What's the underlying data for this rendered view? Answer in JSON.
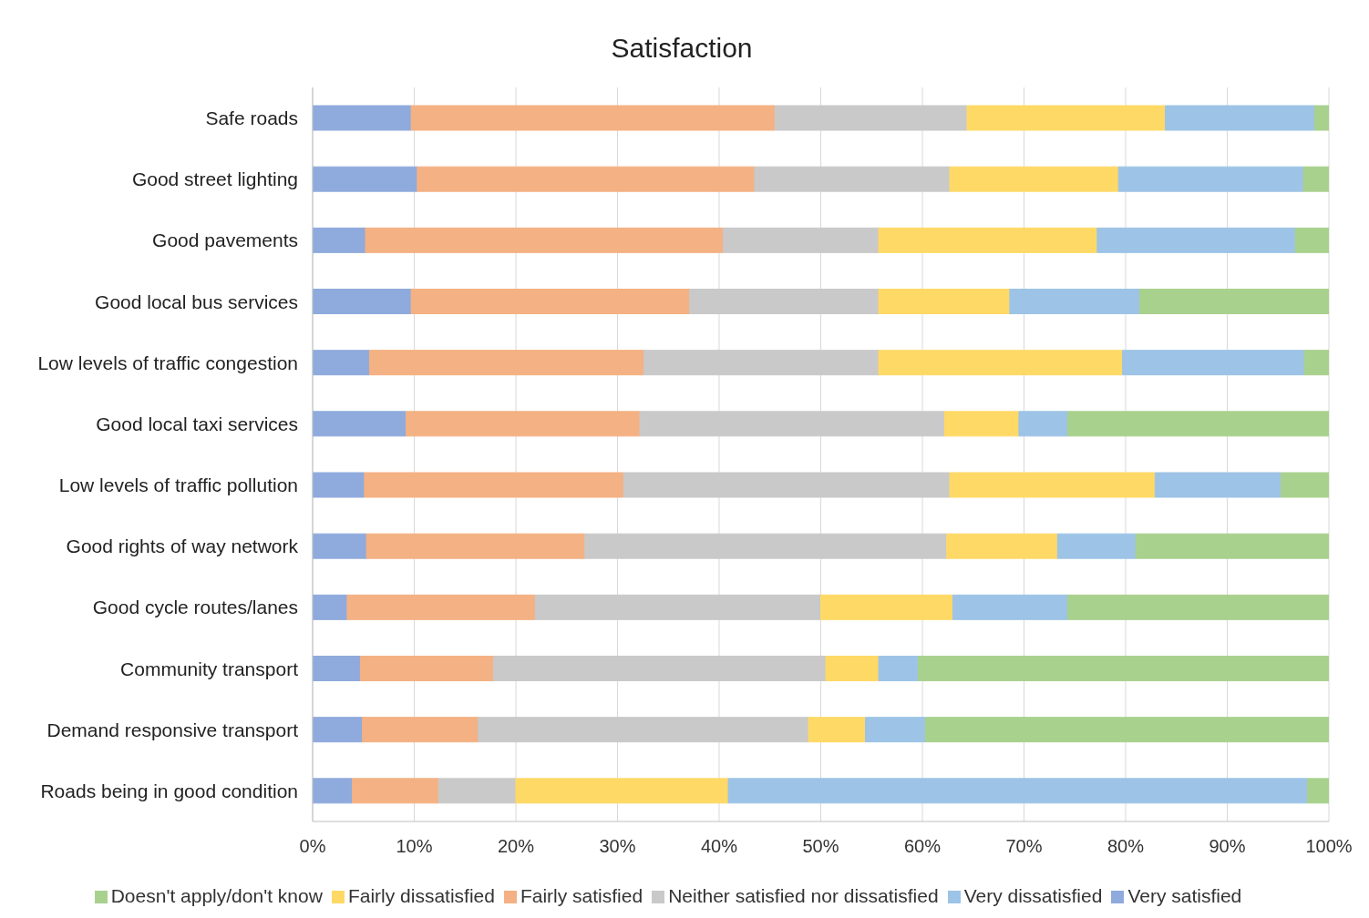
{
  "chart_data": {
    "type": "bar",
    "orientation": "horizontal",
    "stacked": true,
    "title": "Satisfaction",
    "categories": [
      "Safe roads",
      "Good street lighting",
      "Good pavements",
      "Good local bus services",
      "Low levels of traffic congestion",
      "Good local taxi services",
      "Low levels of traffic pollution",
      "Good rights of way network",
      "Good cycle routes/lanes",
      "Community transport",
      "Demand responsive transport",
      "Roads being in good condition"
    ],
    "series": [
      {
        "name": "Very satisfied",
        "color": "#8faadc",
        "values": [
          9.7,
          10.3,
          5.2,
          9.7,
          5.6,
          9.2,
          5.1,
          5.3,
          3.4,
          4.7,
          4.9,
          3.9
        ]
      },
      {
        "name": "Fairly satisfied",
        "color": "#f4b183",
        "values": [
          35.8,
          33.2,
          35.2,
          27.4,
          27.0,
          23.0,
          25.5,
          21.5,
          18.5,
          13.1,
          11.4,
          8.5
        ]
      },
      {
        "name": "Neither satisfied nor dissatisfied",
        "color": "#c9c9c9",
        "values": [
          18.9,
          19.2,
          15.3,
          18.6,
          23.1,
          30.0,
          32.1,
          35.6,
          28.1,
          32.7,
          32.5,
          7.6
        ]
      },
      {
        "name": "Fairly dissatisfied",
        "color": "#ffd966",
        "values": [
          19.5,
          16.6,
          21.5,
          12.9,
          24.0,
          7.3,
          20.2,
          10.9,
          13.0,
          5.2,
          5.6,
          20.9
        ]
      },
      {
        "name": "Very dissatisfied",
        "color": "#9dc3e6",
        "values": [
          14.7,
          18.2,
          19.5,
          12.8,
          17.9,
          4.8,
          12.4,
          7.7,
          11.3,
          3.9,
          5.9,
          57.0
        ]
      },
      {
        "name": "Doesn't apply/don't know",
        "color": "#a9d18e",
        "values": [
          1.4,
          2.5,
          3.3,
          18.6,
          2.4,
          25.7,
          4.7,
          19.0,
          25.7,
          40.4,
          39.7,
          2.1
        ]
      }
    ],
    "xlim": [
      0,
      100
    ],
    "xticks": [
      {
        "value": 0,
        "label": "0%"
      },
      {
        "value": 10,
        "label": "10%"
      },
      {
        "value": 20,
        "label": "20%"
      },
      {
        "value": 30,
        "label": "30%"
      },
      {
        "value": 40,
        "label": "40%"
      },
      {
        "value": 50,
        "label": "50%"
      },
      {
        "value": 60,
        "label": "60%"
      },
      {
        "value": 70,
        "label": "70%"
      },
      {
        "value": 80,
        "label": "80%"
      },
      {
        "value": 90,
        "label": "90%"
      },
      {
        "value": 100,
        "label": "100%"
      }
    ],
    "grid": "x",
    "legend": "bottom"
  }
}
